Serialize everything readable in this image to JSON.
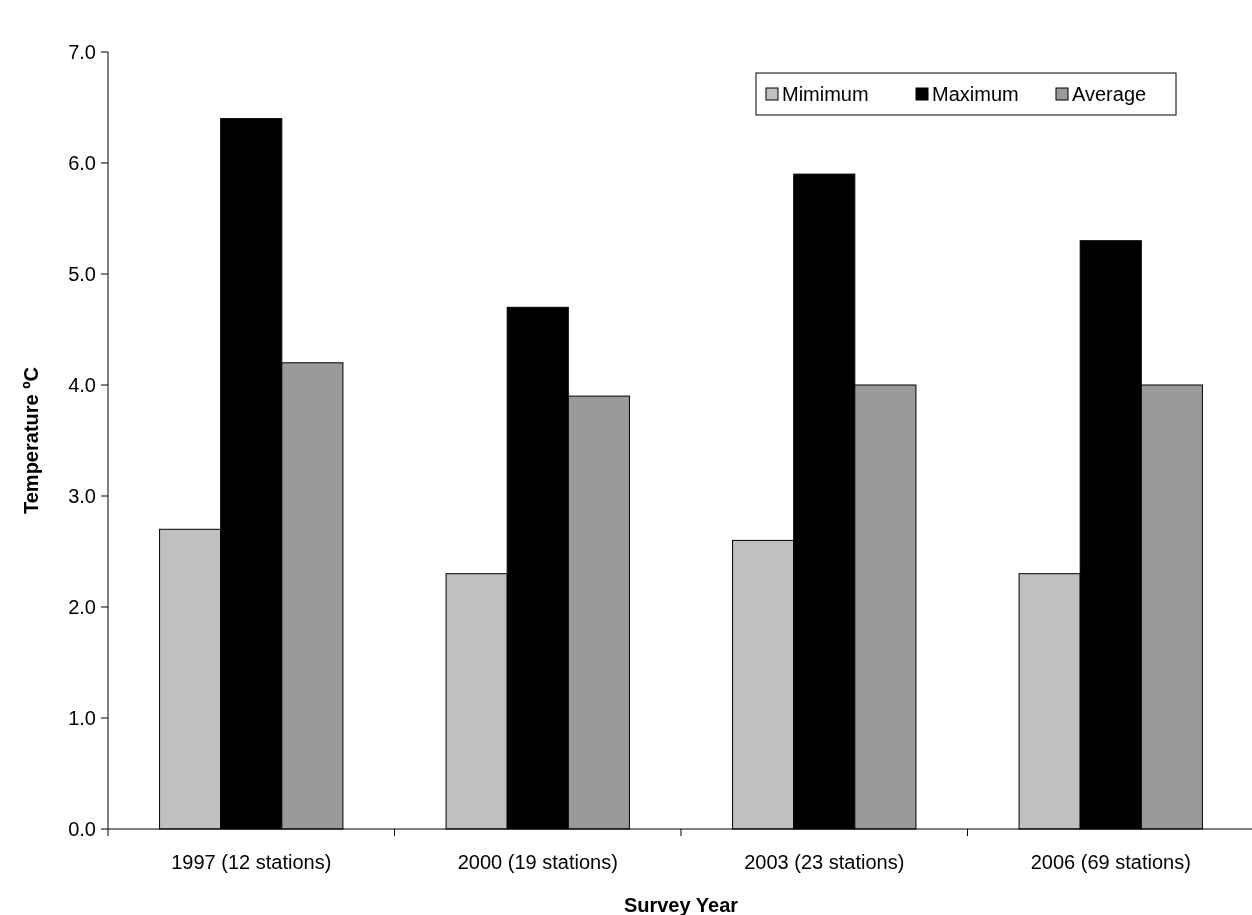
{
  "chart_data": {
    "type": "bar",
    "xlabel": "Survey Year",
    "ylabel": "Temperature ºC",
    "categories": [
      "1997 (12 stations)",
      "2000 (19 stations)",
      "2003 (23 stations)",
      "2006 (69 stations)"
    ],
    "series": [
      {
        "name": "Mimimum",
        "color": "#c0c0c0",
        "values": [
          2.7,
          2.3,
          2.6,
          2.3
        ]
      },
      {
        "name": "Maximum",
        "color": "#000000",
        "values": [
          6.4,
          4.7,
          5.9,
          5.3
        ]
      },
      {
        "name": "Average",
        "color": "#9a9a9a",
        "values": [
          4.2,
          3.9,
          4.0,
          4.0
        ]
      }
    ],
    "ylim": [
      0,
      7
    ],
    "yticks": [
      {
        "value": 0,
        "label": "0.0"
      },
      {
        "value": 1,
        "label": "1.0"
      },
      {
        "value": 2,
        "label": "2.0"
      },
      {
        "value": 3,
        "label": "3.0"
      },
      {
        "value": 4,
        "label": "4.0"
      },
      {
        "value": 5,
        "label": "5.0"
      },
      {
        "value": 6,
        "label": "6.0"
      },
      {
        "value": 7,
        "label": "7.0"
      }
    ],
    "grid": false,
    "legend": "top right"
  }
}
